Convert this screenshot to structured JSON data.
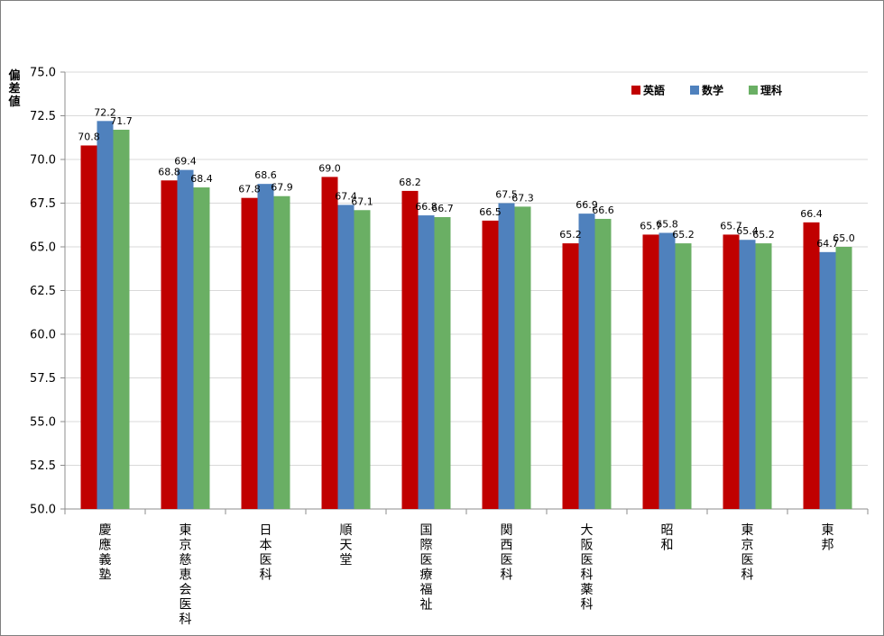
{
  "chart_data": {
    "type": "bar",
    "ylabel": "偏差値",
    "ylim": [
      50.0,
      75.0
    ],
    "ytick_step": 2.5,
    "grid": true,
    "legend_position": "top-right",
    "categories": [
      "慶應義塾",
      "東京慈恵会医科",
      "日本医科",
      "順天堂",
      "国際医療福祉",
      "関西医科",
      "大阪医科薬科",
      "昭和",
      "東京医科",
      "東邦"
    ],
    "series": [
      {
        "name": "英語",
        "color": "#c00000",
        "values": [
          70.8,
          68.8,
          67.8,
          69.0,
          68.2,
          66.5,
          65.2,
          65.7,
          65.7,
          66.4
        ]
      },
      {
        "name": "数学",
        "color": "#4f81bd",
        "values": [
          72.2,
          69.4,
          68.6,
          67.4,
          66.8,
          67.5,
          66.9,
          65.8,
          65.4,
          64.7
        ]
      },
      {
        "name": "理科",
        "color": "#6aaf64",
        "values": [
          71.7,
          68.4,
          67.9,
          67.1,
          66.7,
          67.3,
          66.6,
          65.2,
          65.2,
          65.0
        ]
      }
    ]
  }
}
